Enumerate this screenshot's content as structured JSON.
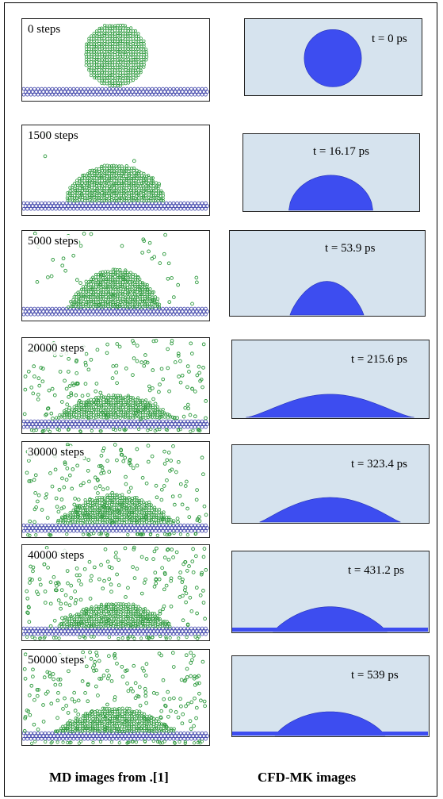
{
  "figure": {
    "rows": [
      {
        "md_label": "0 steps",
        "cfd_label": "t = 0 ps"
      },
      {
        "md_label": "1500 steps",
        "cfd_label": "t = 16.17 ps"
      },
      {
        "md_label": "5000 steps",
        "cfd_label": "t = 53.9 ps"
      },
      {
        "md_label": "20000 steps",
        "cfd_label": "t = 215.6 ps"
      },
      {
        "md_label": "30000 steps",
        "cfd_label": "t = 323.4 ps"
      },
      {
        "md_label": "40000 steps",
        "cfd_label": "t = 431.2 ps"
      },
      {
        "md_label": "50000 steps",
        "cfd_label": "t = 539 ps"
      }
    ],
    "caption_md": "MD images from .[1]",
    "caption_cfd": "CFD-MK images"
  },
  "colors": {
    "md_particle": "#2e9a3e",
    "md_substrate": "#3a3fa8",
    "cfd_fluid": "#3d4df0",
    "cfd_background": "#d6e3ee"
  }
}
